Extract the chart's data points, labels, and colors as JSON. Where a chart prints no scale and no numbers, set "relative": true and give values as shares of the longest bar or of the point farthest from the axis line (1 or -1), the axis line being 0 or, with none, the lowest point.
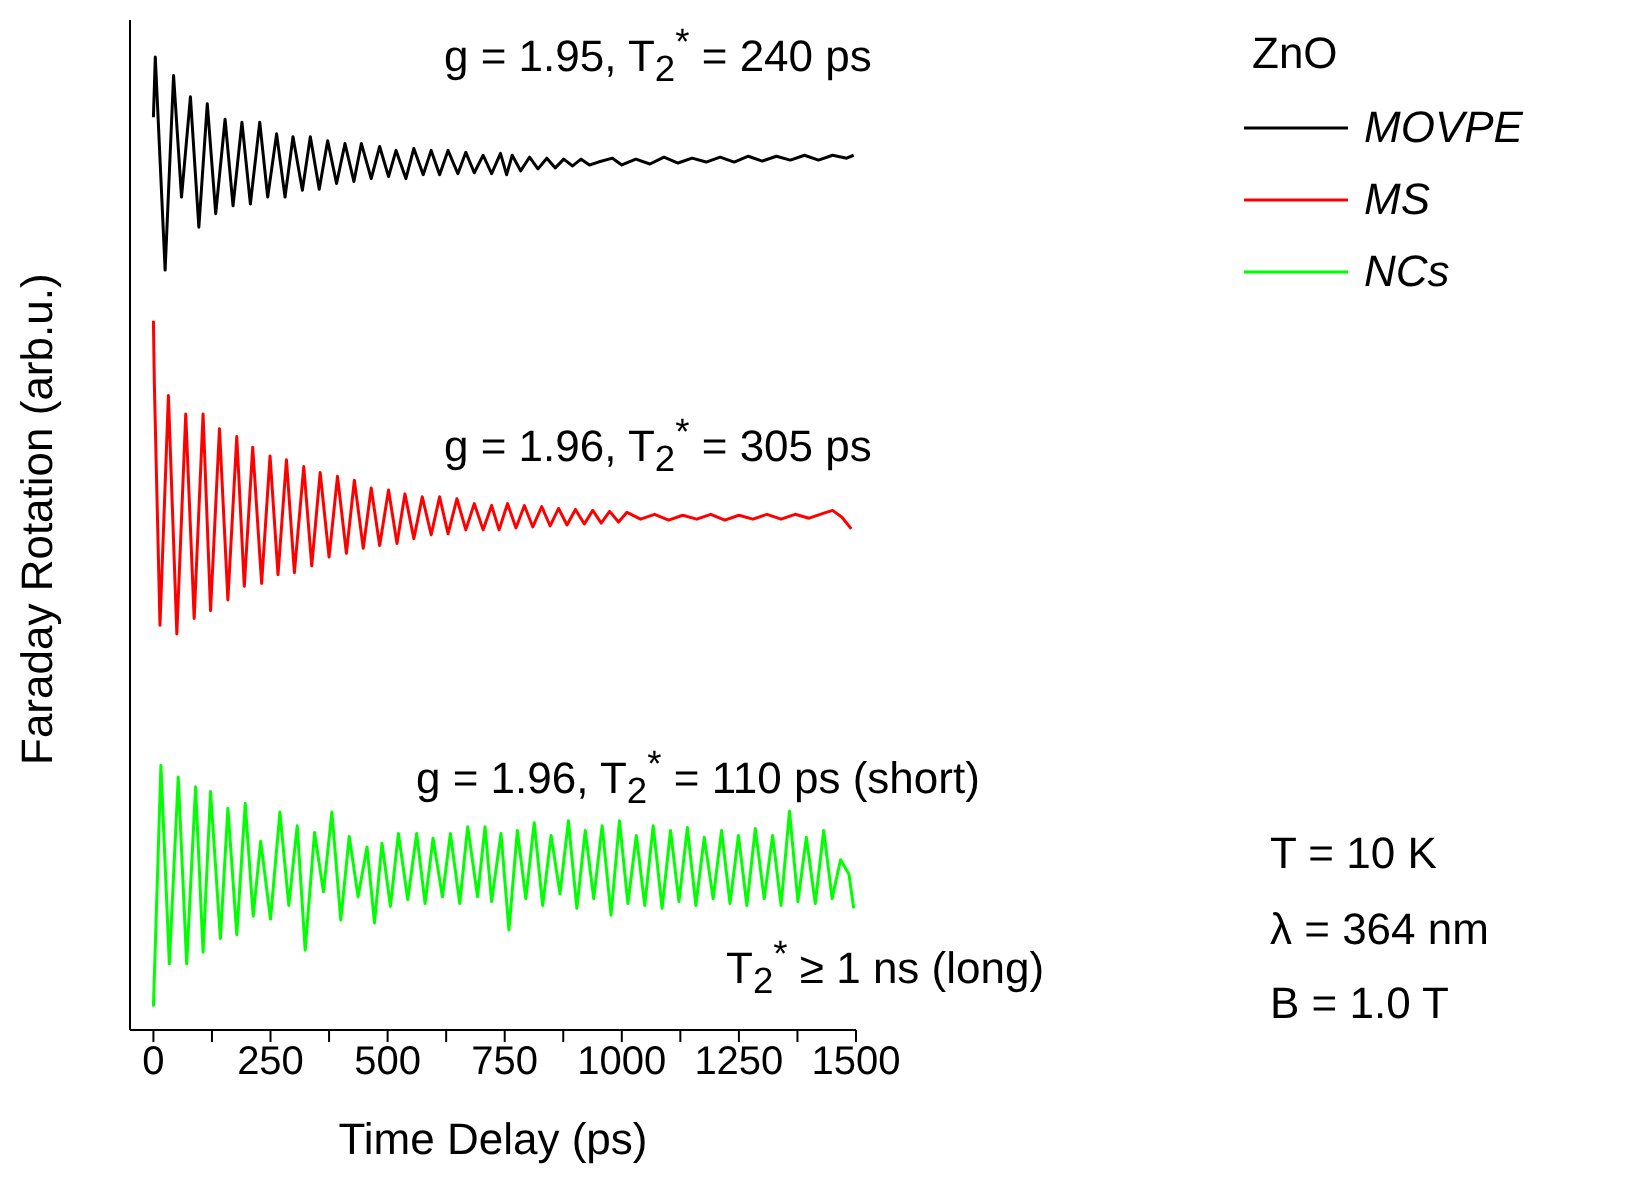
{
  "chart_data": {
    "type": "line",
    "xlabel": "Time Delay (ps)",
    "ylabel": "Faraday Rotation (arb.u.)",
    "relative": true,
    "xlim": [
      -50,
      1500
    ],
    "xticks": [
      0,
      {
        "value": 125,
        "label": null
      },
      250,
      {
        "value": 375,
        "label": null
      },
      500,
      {
        "value": 625,
        "label": null
      },
      750,
      {
        "value": 875,
        "label": null
      },
      1000,
      {
        "value": 1125,
        "label": null
      },
      1250,
      {
        "value": 1375,
        "label": null
      },
      1500
    ],
    "legend": "top right",
    "legend_title": "ZnO",
    "annotations": [
      "g = 1.95, T$_{2}$$^{*}$ = 240 ps",
      "g = 1.96, T$_{2}$$^{*}$ = 305 ps",
      "g = 1.96, T$_{2}$$^{*}$ = 110 ps (short)",
      "T$_{2}$$^{*}$ ≥ 1 ns (long)",
      "T = 10 K",
      "λ = 364 nm",
      "B = 1.0 T"
    ],
    "series": [
      {
        "name": "MOVPE",
        "color": "#000000",
        "x": [
          0,
          4,
          25,
          43,
          60,
          79,
          97,
          115,
          133,
          153,
          170,
          189,
          207,
          227,
          244,
          263,
          281,
          298,
          318,
          335,
          354,
          372,
          391,
          409,
          428,
          444,
          465,
          483,
          502,
          518,
          539,
          556,
          576,
          593,
          611,
          629,
          650,
          667,
          685,
          704,
          722,
          741,
          754,
          766,
          784,
          803,
          821,
          840,
          858,
          876,
          895,
          913,
          931,
          950,
          980,
          1000,
          1030,
          1060,
          1090,
          1120,
          1150,
          1180,
          1210,
          1240,
          1270,
          1300,
          1330,
          1360,
          1390,
          1420,
          1450,
          1480,
          1495
        ],
        "values": [
          0.938,
          1.0,
          0.781,
          0.981,
          0.856,
          0.959,
          0.825,
          0.952,
          0.839,
          0.936,
          0.847,
          0.933,
          0.849,
          0.933,
          0.856,
          0.921,
          0.856,
          0.918,
          0.863,
          0.918,
          0.864,
          0.914,
          0.87,
          0.911,
          0.872,
          0.911,
          0.875,
          0.908,
          0.877,
          0.904,
          0.875,
          0.906,
          0.879,
          0.904,
          0.879,
          0.904,
          0.88,
          0.902,
          0.881,
          0.899,
          0.88,
          0.901,
          0.879,
          0.899,
          0.883,
          0.897,
          0.885,
          0.896,
          0.886,
          0.895,
          0.888,
          0.895,
          0.889,
          0.892,
          0.896,
          0.889,
          0.895,
          0.89,
          0.897,
          0.891,
          0.896,
          0.892,
          0.897,
          0.892,
          0.898,
          0.893,
          0.898,
          0.894,
          0.899,
          0.894,
          0.899,
          0.896,
          0.899
        ]
      },
      {
        "name": "MS",
        "color": "#ff0000",
        "x": [
          0,
          2,
          14,
          32,
          50,
          69,
          87,
          106,
          122,
          141,
          159,
          178,
          194,
          212,
          231,
          249,
          266,
          284,
          301,
          321,
          338,
          356,
          375,
          393,
          412,
          429,
          448,
          465,
          483,
          502,
          520,
          537,
          556,
          574,
          593,
          611,
          629,
          648,
          667,
          685,
          704,
          722,
          738,
          756,
          774,
          792,
          810,
          829,
          847,
          865,
          883,
          901,
          920,
          938,
          956,
          974,
          993,
          1011,
          1040,
          1070,
          1100,
          1130,
          1160,
          1190,
          1220,
          1250,
          1280,
          1310,
          1340,
          1370,
          1400,
          1430,
          1450,
          1470,
          1490
        ],
        "values": [
          0.729,
          0.664,
          0.416,
          0.652,
          0.407,
          0.633,
          0.423,
          0.633,
          0.431,
          0.618,
          0.442,
          0.61,
          0.456,
          0.599,
          0.459,
          0.59,
          0.468,
          0.586,
          0.47,
          0.579,
          0.477,
          0.573,
          0.486,
          0.569,
          0.49,
          0.565,
          0.495,
          0.557,
          0.498,
          0.555,
          0.5,
          0.551,
          0.505,
          0.548,
          0.509,
          0.548,
          0.51,
          0.546,
          0.514,
          0.541,
          0.514,
          0.539,
          0.514,
          0.541,
          0.516,
          0.539,
          0.517,
          0.538,
          0.518,
          0.536,
          0.519,
          0.535,
          0.52,
          0.534,
          0.521,
          0.533,
          0.522,
          0.532,
          0.525,
          0.53,
          0.524,
          0.529,
          0.525,
          0.53,
          0.524,
          0.529,
          0.525,
          0.53,
          0.525,
          0.53,
          0.526,
          0.531,
          0.534,
          0.527,
          0.515
        ]
      },
      {
        "name": "NCs",
        "color": "#00ff00",
        "x": [
          0,
          16,
          34,
          53,
          71,
          90,
          106,
          122,
          143,
          159,
          178,
          196,
          213,
          229,
          250,
          270,
          289,
          307,
          324,
          344,
          363,
          381,
          400,
          418,
          437,
          456,
          472,
          488,
          506,
          523,
          543,
          562,
          580,
          597,
          617,
          634,
          654,
          671,
          692,
          708,
          722,
          742,
          759,
          777,
          795,
          813,
          831,
          849,
          868,
          886,
          904,
          922,
          940,
          958,
          977,
          995,
          1013,
          1031,
          1049,
          1067,
          1086,
          1104,
          1122,
          1140,
          1158,
          1176,
          1195,
          1213,
          1231,
          1249,
          1267,
          1285,
          1304,
          1322,
          1340,
          1358,
          1376,
          1394,
          1413,
          1431,
          1449,
          1467,
          1485,
          1495
        ],
        "values": [
          0.024,
          0.272,
          0.068,
          0.26,
          0.068,
          0.25,
          0.08,
          0.245,
          0.094,
          0.228,
          0.098,
          0.233,
          0.117,
          0.194,
          0.114,
          0.224,
          0.128,
          0.21,
          0.082,
          0.203,
          0.142,
          0.224,
          0.113,
          0.199,
          0.137,
          0.188,
          0.11,
          0.192,
          0.127,
          0.202,
          0.134,
          0.202,
          0.13,
          0.197,
          0.137,
          0.202,
          0.13,
          0.209,
          0.137,
          0.209,
          0.132,
          0.202,
          0.103,
          0.205,
          0.135,
          0.213,
          0.128,
          0.2,
          0.14,
          0.215,
          0.125,
          0.205,
          0.135,
          0.21,
          0.118,
          0.215,
          0.13,
          0.2,
          0.128,
          0.21,
          0.125,
          0.205,
          0.132,
          0.208,
          0.128,
          0.198,
          0.135,
          0.205,
          0.13,
          0.2,
          0.128,
          0.207,
          0.135,
          0.2,
          0.128,
          0.225,
          0.132,
          0.198,
          0.13,
          0.205,
          0.135,
          0.175,
          0.16,
          0.125
        ]
      }
    ]
  }
}
